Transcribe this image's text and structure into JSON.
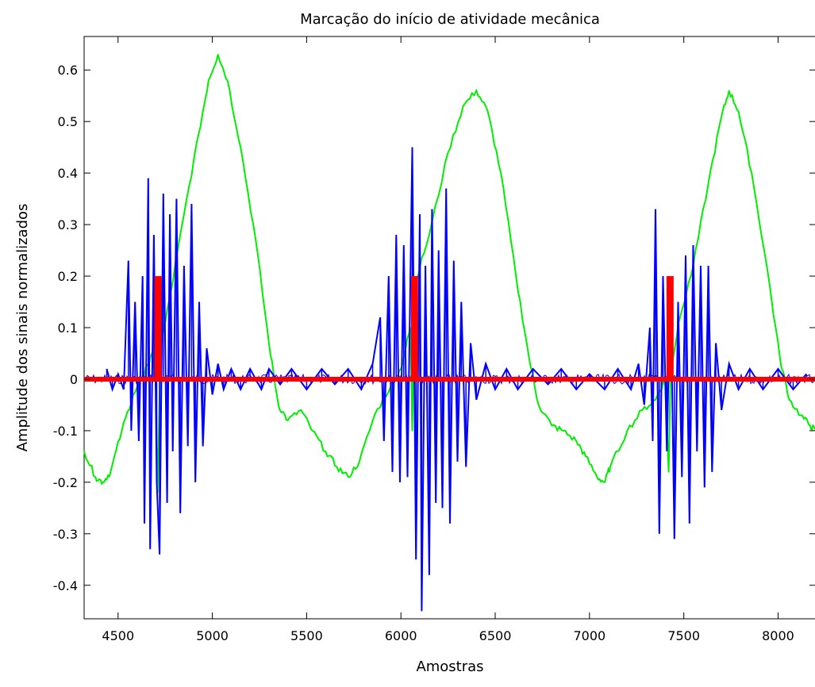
{
  "chart_data": {
    "type": "line",
    "title": "Marcação do início de atividade mecânica",
    "xlabel": "Amostras",
    "ylabel": "Amplitude dos sinais normalizados",
    "xlim": [
      4320,
      8200
    ],
    "ylim": [
      -0.465,
      0.665
    ],
    "xticks": [
      4500,
      5000,
      5500,
      6000,
      6500,
      7000,
      7500,
      8000
    ],
    "xtick_labels": [
      "4500",
      "5000",
      "5500",
      "6000",
      "6500",
      "7000",
      "7500",
      "8000"
    ],
    "yticks": [
      0.6,
      0.5,
      0.4,
      0.3,
      0.2,
      0.1,
      0,
      -0.1,
      -0.2,
      -0.3,
      -0.4
    ],
    "ytick_labels": [
      "0.6",
      "0.5",
      "0.4",
      "0.3",
      "0.2",
      "0.1",
      "0",
      "-0.1",
      "-0.2",
      "-0.3",
      "-0.4"
    ],
    "grid": false,
    "legend": "none",
    "series": [
      {
        "color": "#00ee00",
        "style": "line",
        "points": [
          [
            4320,
            -0.14
          ],
          [
            4380,
            -0.19
          ],
          [
            4420,
            -0.2
          ],
          [
            4460,
            -0.18
          ],
          [
            4520,
            -0.1
          ],
          [
            4580,
            -0.03
          ],
          [
            4640,
            0.01
          ],
          [
            4680,
            0.05
          ],
          [
            4700,
            0.0
          ],
          [
            4710,
            -0.22
          ],
          [
            4725,
            0.06
          ],
          [
            4780,
            0.17
          ],
          [
            4850,
            0.32
          ],
          [
            4930,
            0.48
          ],
          [
            4980,
            0.58
          ],
          [
            5030,
            0.63
          ],
          [
            5080,
            0.58
          ],
          [
            5150,
            0.45
          ],
          [
            5230,
            0.27
          ],
          [
            5300,
            0.07
          ],
          [
            5350,
            -0.05
          ],
          [
            5400,
            -0.08
          ],
          [
            5470,
            -0.06
          ],
          [
            5530,
            -0.1
          ],
          [
            5600,
            -0.14
          ],
          [
            5660,
            -0.17
          ],
          [
            5720,
            -0.19
          ],
          [
            5780,
            -0.16
          ],
          [
            5860,
            -0.07
          ],
          [
            5950,
            -0.01
          ],
          [
            6000,
            0.02
          ],
          [
            6050,
            0.1
          ],
          [
            6060,
            -0.1
          ],
          [
            6070,
            0.18
          ],
          [
            6150,
            0.28
          ],
          [
            6250,
            0.44
          ],
          [
            6330,
            0.53
          ],
          [
            6400,
            0.56
          ],
          [
            6460,
            0.52
          ],
          [
            6530,
            0.4
          ],
          [
            6610,
            0.2
          ],
          [
            6680,
            0.04
          ],
          [
            6730,
            -0.05
          ],
          [
            6800,
            -0.09
          ],
          [
            6860,
            -0.1
          ],
          [
            6930,
            -0.12
          ],
          [
            6980,
            -0.15
          ],
          [
            7040,
            -0.19
          ],
          [
            7080,
            -0.2
          ],
          [
            7110,
            -0.17
          ],
          [
            7200,
            -0.1
          ],
          [
            7280,
            -0.06
          ],
          [
            7350,
            -0.04
          ],
          [
            7400,
            0.0
          ],
          [
            7420,
            -0.18
          ],
          [
            7430,
            0.02
          ],
          [
            7480,
            0.12
          ],
          [
            7550,
            0.22
          ],
          [
            7630,
            0.38
          ],
          [
            7700,
            0.51
          ],
          [
            7740,
            0.56
          ],
          [
            7790,
            0.52
          ],
          [
            7860,
            0.4
          ],
          [
            7940,
            0.22
          ],
          [
            8010,
            0.04
          ],
          [
            8060,
            -0.04
          ],
          [
            8120,
            -0.07
          ],
          [
            8170,
            -0.09
          ],
          [
            8200,
            -0.1
          ]
        ]
      },
      {
        "color": "#0000ff",
        "style": "spikes",
        "points": [
          [
            4440,
            0.02
          ],
          [
            4470,
            -0.02
          ],
          [
            4500,
            0.01
          ],
          [
            4530,
            -0.02
          ],
          [
            4555,
            0.23
          ],
          [
            4570,
            -0.1
          ],
          [
            4590,
            0.15
          ],
          [
            4610,
            -0.12
          ],
          [
            4630,
            0.2
          ],
          [
            4640,
            -0.28
          ],
          [
            4660,
            0.39
          ],
          [
            4670,
            -0.33
          ],
          [
            4690,
            0.28
          ],
          [
            4705,
            -0.2
          ],
          [
            4720,
            -0.34
          ],
          [
            4740,
            0.36
          ],
          [
            4760,
            -0.24
          ],
          [
            4775,
            0.32
          ],
          [
            4790,
            -0.14
          ],
          [
            4810,
            0.35
          ],
          [
            4830,
            -0.26
          ],
          [
            4850,
            0.22
          ],
          [
            4870,
            -0.13
          ],
          [
            4890,
            0.34
          ],
          [
            4910,
            -0.2
          ],
          [
            4930,
            0.15
          ],
          [
            4950,
            -0.13
          ],
          [
            4970,
            0.06
          ],
          [
            5000,
            -0.03
          ],
          [
            5030,
            0.03
          ],
          [
            5060,
            -0.02
          ],
          [
            5100,
            0.02
          ],
          [
            5150,
            -0.02
          ],
          [
            5200,
            0.02
          ],
          [
            5260,
            -0.02
          ],
          [
            5300,
            0.02
          ],
          [
            5360,
            -0.01
          ],
          [
            5420,
            0.02
          ],
          [
            5500,
            -0.02
          ],
          [
            5580,
            0.02
          ],
          [
            5650,
            -0.01
          ],
          [
            5720,
            0.02
          ],
          [
            5790,
            -0.02
          ],
          [
            5850,
            0.03
          ],
          [
            5890,
            0.12
          ],
          [
            5910,
            -0.12
          ],
          [
            5935,
            0.2
          ],
          [
            5955,
            -0.18
          ],
          [
            5975,
            0.28
          ],
          [
            5995,
            -0.2
          ],
          [
            6015,
            0.26
          ],
          [
            6035,
            -0.19
          ],
          [
            6060,
            0.45
          ],
          [
            6080,
            -0.35
          ],
          [
            6100,
            0.32
          ],
          [
            6110,
            -0.45
          ],
          [
            6130,
            0.22
          ],
          [
            6150,
            -0.38
          ],
          [
            6165,
            0.33
          ],
          [
            6185,
            -0.24
          ],
          [
            6200,
            0.25
          ],
          [
            6220,
            -0.25
          ],
          [
            6240,
            0.37
          ],
          [
            6260,
            -0.28
          ],
          [
            6280,
            0.23
          ],
          [
            6300,
            -0.16
          ],
          [
            6320,
            0.15
          ],
          [
            6345,
            -0.17
          ],
          [
            6370,
            0.07
          ],
          [
            6400,
            -0.04
          ],
          [
            6450,
            0.03
          ],
          [
            6500,
            -0.02
          ],
          [
            6560,
            0.02
          ],
          [
            6620,
            -0.02
          ],
          [
            6700,
            0.02
          ],
          [
            6780,
            -0.01
          ],
          [
            6850,
            0.02
          ],
          [
            6930,
            -0.02
          ],
          [
            7000,
            0.01
          ],
          [
            7080,
            -0.02
          ],
          [
            7150,
            0.02
          ],
          [
            7220,
            -0.02
          ],
          [
            7260,
            0.03
          ],
          [
            7290,
            -0.05
          ],
          [
            7320,
            0.1
          ],
          [
            7335,
            -0.12
          ],
          [
            7350,
            0.33
          ],
          [
            7370,
            -0.3
          ],
          [
            7390,
            0.2
          ],
          [
            7410,
            -0.14
          ],
          [
            7430,
            0.19
          ],
          [
            7450,
            -0.31
          ],
          [
            7470,
            0.15
          ],
          [
            7490,
            -0.19
          ],
          [
            7510,
            0.24
          ],
          [
            7530,
            -0.28
          ],
          [
            7550,
            0.26
          ],
          [
            7570,
            -0.14
          ],
          [
            7590,
            0.22
          ],
          [
            7610,
            -0.21
          ],
          [
            7630,
            0.22
          ],
          [
            7650,
            -0.18
          ],
          [
            7670,
            0.07
          ],
          [
            7700,
            -0.06
          ],
          [
            7740,
            0.03
          ],
          [
            7790,
            -0.02
          ],
          [
            7850,
            0.02
          ],
          [
            7920,
            -0.02
          ],
          [
            8000,
            0.02
          ],
          [
            8080,
            -0.02
          ],
          [
            8150,
            0.01
          ]
        ]
      },
      {
        "color": "#ff0000",
        "style": "markers",
        "baseline": 0,
        "markers": [
          [
            4710,
            0.2
          ],
          [
            6070,
            0.2
          ],
          [
            7425,
            0.2
          ]
        ]
      }
    ]
  }
}
